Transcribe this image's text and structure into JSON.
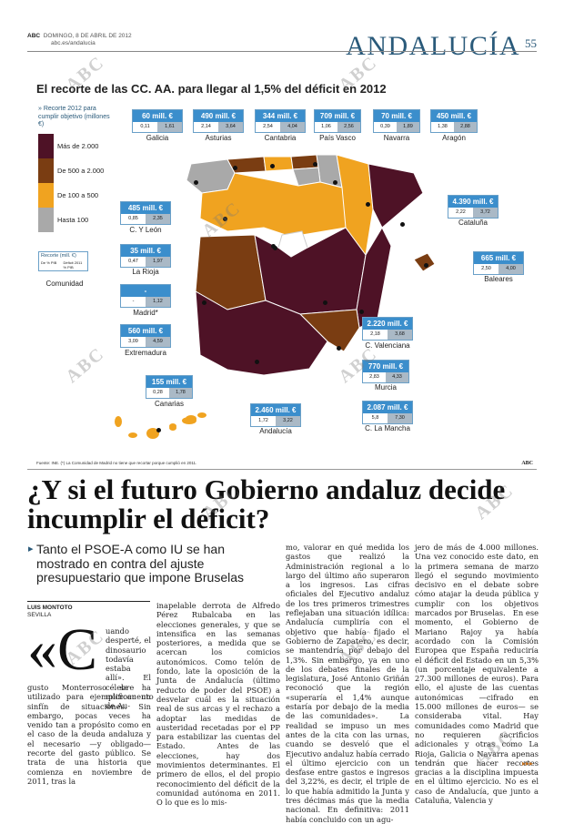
{
  "header": {
    "paper": "ABC",
    "date": "DOMINGO, 8 DE ABRIL DE 2012",
    "site": "abc.es/andalucia",
    "section": "ANDALUCÍA",
    "page": "55"
  },
  "chart": {
    "title": "El recorte de las CC. AA. para llegar al 1,5% del déficit en 2012",
    "legend_title": "» Recorte 2012 para cumplir objetivo (millones €)",
    "legend": [
      {
        "label": "Más de 2.000",
        "color": "#4e1226"
      },
      {
        "label": "De 500 a 2.000",
        "color": "#7a3d12"
      },
      {
        "label": "De 100 a 500",
        "color": "#f0a320"
      },
      {
        "label": "Hasta 100",
        "color": "#a9a9a9"
      }
    ],
    "key_box": {
      "head": "Recorte (mill. €)",
      "left": "De % PIB",
      "right": "Déficit 2011 % PIB",
      "name": "Comunidad"
    },
    "regions": [
      {
        "name": "Galicia",
        "amount": "60 mill. €",
        "v1": "0,11",
        "v2": "1,61"
      },
      {
        "name": "Asturias",
        "amount": "490 mill. €",
        "v1": "2,14",
        "v2": "3,64"
      },
      {
        "name": "Cantabria",
        "amount": "344 mill. €",
        "v1": "2,54",
        "v2": "4,04"
      },
      {
        "name": "País Vasco",
        "amount": "709 mill. €",
        "v1": "1,06",
        "v2": "2,56"
      },
      {
        "name": "Navarra",
        "amount": "70 mill. €",
        "v1": "0,39",
        "v2": "1,89"
      },
      {
        "name": "Aragón",
        "amount": "450 mill. €",
        "v1": "1,38",
        "v2": "2,88"
      },
      {
        "name": "Cataluña",
        "amount": "4.390 mill. €",
        "v1": "2,22",
        "v2": "3,72"
      },
      {
        "name": "Baleares",
        "amount": "665 mill. €",
        "v1": "2,50",
        "v2": "4,00"
      },
      {
        "name": "C. Y León",
        "amount": "485 mill. €",
        "v1": "0,85",
        "v2": "2,35"
      },
      {
        "name": "La Rioja",
        "amount": "35 mill. €",
        "v1": "0,47",
        "v2": "1,97"
      },
      {
        "name": "Madrid*",
        "amount": "-",
        "v1": "-",
        "v2": "1,12"
      },
      {
        "name": "Extremadura",
        "amount": "560 mill. €",
        "v1": "3,09",
        "v2": "4,59"
      },
      {
        "name": "Canarias",
        "amount": "155 mill. €",
        "v1": "0,28",
        "v2": "1,78"
      },
      {
        "name": "Andalucía",
        "amount": "2.460 mill. €",
        "v1": "1,72",
        "v2": "3,22"
      },
      {
        "name": "C. Valenciana",
        "amount": "2.220 mill. €",
        "v1": "2,18",
        "v2": "3,68"
      },
      {
        "name": "Murcia",
        "amount": "770 mill. €",
        "v1": "2,83",
        "v2": "4,33"
      },
      {
        "name": "C. La Mancha",
        "amount": "2.087 mill. €",
        "v1": "5,8",
        "v2": "7,30"
      }
    ],
    "source": "Fuente: INE. (*) La Comunidad de Madrid no tiene que recortar porque cumplió en 2011.",
    "credit": "ABC"
  },
  "article": {
    "headline": "¿Y si el futuro Gobierno andaluz decide incumplir el déficit?",
    "subhead": "Tanto el PSOE-A como IU se han mostrado en contra del ajuste presupuestario que impone Bruselas",
    "author": "LUIS MONTOTO",
    "city": "SEVILLA",
    "dropcap": "«C",
    "col1_lead": "uando desperté, el dinosaurio todavía estaba allí». El célebre microcuento de Au-",
    "col1_body": "gusto Monterroso se ha utilizado para ejemplificar un sinfín de situaciones. Sin embargo, pocas veces ha venido tan a propósito como en el caso de la deuda andaluza y el necesario —y obligado— recorte del gasto público. Se trata de una historia que comienza en noviembre de 2011, tras la",
    "col2": "inapelable derrota de Alfredo Pérez Rubalcaba en las elecciones generales, y que se intensifica en las semanas posteriores, a medida que se acercan los comicios autonómicos. Como telón de fondo, late la oposición de la Junta de Andalucía (último reducto de poder del PSOE) a desvelar cuál es la situación real de sus arcas y el rechazo a adoptar las medidas de austeridad recetadas por el PP para estabilizar las cuentas del Estado.   Antes de las elecciones, hay dos movimientos determinantes. El primero de ellos, el del propio reconocimiento del déficit de la comunidad autónoma en 2011. O lo que es lo mis-",
    "col3": "mo, valorar en qué medida los gastos que realizó la Administración regional a lo largo del último año superaron a los ingresos. Las cifras oficiales del Ejecutivo andaluz de los tres primeros trimestres reflejaban una situación idílica: Andalucía cumpliría con el objetivo que había fijado el Gobierno de Zapatero, es decir, se mantendría por debajo del 1,3%. Sin embargo, ya en uno de los debates finales de la legislatura, José Antonio Griñán reconoció que la región «superaría el 1,4% aunque estaría por debajo de la media de las comunidades».   La realidad se impuso un mes antes de la cita con las urnas, cuando se desveló que el Ejecutivo andaluz había cerrado el último ejercicio con un desfase entre gastos e ingresos del 3,22%, es decir, el triple de lo que había admitido la Junta y tres décimas más que la media nacional. En definitiva: 2011 había concluido con un agu-",
    "col4": "jero de más de 4.000 millones. Una vez conocido este dato, en la primera semana de marzo llegó el segundo movimiento decisivo en el debate sobre cómo atajar la deuda pública y cumplir con los objetivos marcados por Bruselas.   En ese momento, el Gobierno de Mariano Rajoy ya había acordado con la Comisión Europea que España reduciría el déficit del Estado en un 5,3% (un porcentaje equivalente a 27.300 millones de euros). Para ello, el ajuste de las cuentas autonómicas —cifrado en 15.000 millones de euros— se consideraba vital. Hay comunidades como Madrid que no requieren sacrificios adicionales y otras como La Rioja, Galicia o Navarra apenas tendrán que hacer recortes gracias a la disciplina impuesta en el último ejercicio. No es el caso de Andalucía, que junto a Cataluña, Valencia y",
    "more": "▸▸▸"
  }
}
